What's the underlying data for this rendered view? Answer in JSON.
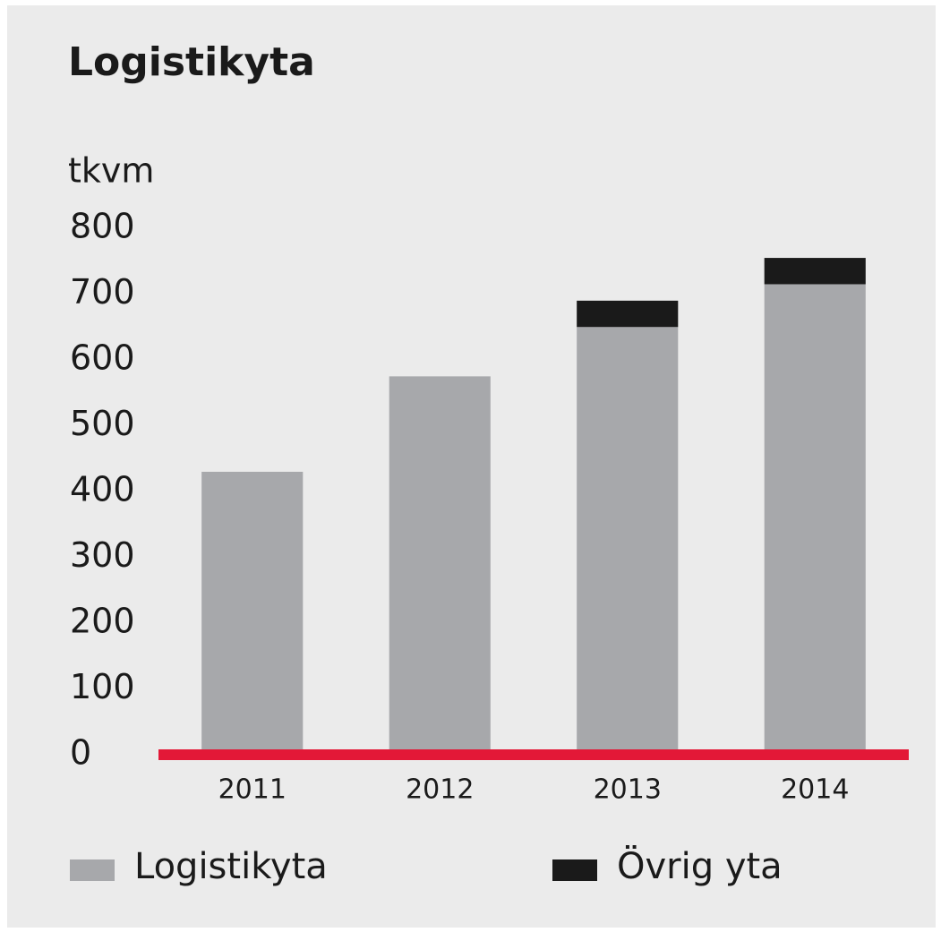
{
  "chart_data": {
    "type": "stacked_bar",
    "title": "Logistikyta",
    "y_label": "tkvm",
    "categories": [
      "2011",
      "2012",
      "2013",
      "2014"
    ],
    "series": [
      {
        "name": "Logistikyta",
        "color": "#a7a8ab",
        "values": [
          430,
          575,
          650,
          715
        ]
      },
      {
        "name": "Övrig yta",
        "color": "#1a1a1a",
        "values": [
          0,
          0,
          40,
          40
        ]
      }
    ],
    "ylim": [
      0,
      800
    ],
    "yticks": [
      0,
      100,
      200,
      300,
      400,
      500,
      600,
      700,
      800
    ],
    "baseline_color": "#e31837",
    "grid": false,
    "legend": "bottom"
  }
}
